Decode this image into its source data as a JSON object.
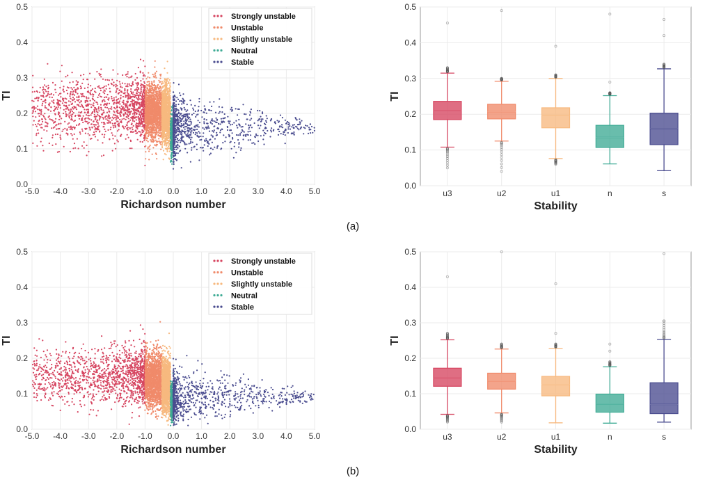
{
  "colors": {
    "strongly_unstable": "#d64560",
    "unstable": "#f08a6a",
    "slightly_unstable": "#f7b97f",
    "neutral": "#3fab95",
    "stable": "#4a4c8f"
  },
  "chart_data": [
    {
      "id": "a-scatter",
      "type": "scatter",
      "panel": "a",
      "xlabel": "Richardson number",
      "ylabel": "TI",
      "xlim": [
        -5.0,
        5.0
      ],
      "ylim": [
        0.0,
        0.5
      ],
      "xticks": [
        "-5.0",
        "-4.0",
        "-3.0",
        "-2.0",
        "-1.0",
        "0.0",
        "1.0",
        "2.0",
        "3.0",
        "4.0",
        "5.0"
      ],
      "yticks": [
        "0.0",
        "0.1",
        "0.2",
        "0.3",
        "0.4",
        "0.5"
      ],
      "legend_position": "top-right",
      "series": [
        {
          "name": "Strongly unstable",
          "x_range": [
            -5.0,
            -1.0
          ],
          "y_center": 0.21,
          "y_spread": 0.045
        },
        {
          "name": "Unstable",
          "x_range": [
            -1.0,
            -0.4
          ],
          "y_center": 0.205,
          "y_spread": 0.04
        },
        {
          "name": "Slightly unstable",
          "x_range": [
            -0.4,
            -0.1
          ],
          "y_center": 0.195,
          "y_spread": 0.04
        },
        {
          "name": "Neutral",
          "x_range": [
            -0.1,
            0.0
          ],
          "y_center": 0.14,
          "y_spread": 0.03
        },
        {
          "name": "Stable",
          "x_range": [
            0.0,
            5.0
          ],
          "y_center": 0.16,
          "y_spread": 0.045
        }
      ]
    },
    {
      "id": "a-box",
      "type": "box",
      "panel": "a",
      "xlabel": "Stability",
      "ylabel": "TI",
      "ylim": [
        0.0,
        0.5
      ],
      "yticks": [
        "0.0",
        "0.1",
        "0.2",
        "0.3",
        "0.4",
        "0.5"
      ],
      "categories": [
        "u3",
        "u2",
        "u1",
        "n",
        "s"
      ],
      "boxes": [
        {
          "category": "u3",
          "whisker_low": 0.108,
          "q1": 0.185,
          "median": 0.21,
          "q3": 0.236,
          "whisker_high": 0.315,
          "outliers_low": [
            0.05,
            0.09
          ],
          "outliers_high": [
            0.33,
            0.455
          ]
        },
        {
          "category": "u2",
          "whisker_low": 0.125,
          "q1": 0.187,
          "median": 0.207,
          "q3": 0.228,
          "whisker_high": 0.292,
          "outliers_low": [
            0.04,
            0.115
          ],
          "outliers_high": [
            0.3,
            0.49
          ]
        },
        {
          "category": "u1",
          "whisker_low": 0.076,
          "q1": 0.162,
          "median": 0.196,
          "q3": 0.218,
          "whisker_high": 0.3,
          "outliers_low": [
            0.06,
            0.07
          ],
          "outliers_high": [
            0.31,
            0.39
          ]
        },
        {
          "category": "n",
          "whisker_low": 0.061,
          "q1": 0.107,
          "median": 0.135,
          "q3": 0.169,
          "whisker_high": 0.252,
          "outliers_low": [],
          "outliers_high": [
            0.26,
            0.29,
            0.48
          ]
        },
        {
          "category": "s",
          "whisker_low": 0.042,
          "q1": 0.115,
          "median": 0.16,
          "q3": 0.203,
          "whisker_high": 0.327,
          "outliers_low": [],
          "outliers_high": [
            0.34,
            0.42,
            0.465
          ]
        }
      ]
    },
    {
      "id": "b-scatter",
      "type": "scatter",
      "panel": "b",
      "xlabel": "Richardson number",
      "ylabel": "TI",
      "xlim": [
        -5.0,
        5.0
      ],
      "ylim": [
        0.0,
        0.5
      ],
      "xticks": [
        "-5.0",
        "-4.0",
        "-3.0",
        "-2.0",
        "-1.0",
        "0.0",
        "1.0",
        "2.0",
        "3.0",
        "4.0",
        "5.0"
      ],
      "yticks": [
        "0.0",
        "0.1",
        "0.2",
        "0.3",
        "0.4",
        "0.5"
      ],
      "legend_position": "top-right",
      "series": [
        {
          "name": "Strongly unstable",
          "x_range": [
            -5.0,
            -1.0
          ],
          "y_center": 0.15,
          "y_spread": 0.04
        },
        {
          "name": "Unstable",
          "x_range": [
            -1.0,
            -0.4
          ],
          "y_center": 0.14,
          "y_spread": 0.038
        },
        {
          "name": "Slightly unstable",
          "x_range": [
            -0.4,
            -0.1
          ],
          "y_center": 0.125,
          "y_spread": 0.038
        },
        {
          "name": "Neutral",
          "x_range": [
            -0.1,
            0.0
          ],
          "y_center": 0.075,
          "y_spread": 0.025
        },
        {
          "name": "Stable",
          "x_range": [
            0.0,
            5.0
          ],
          "y_center": 0.09,
          "y_spread": 0.04
        }
      ]
    },
    {
      "id": "b-box",
      "type": "box",
      "panel": "b",
      "xlabel": "Stability",
      "ylabel": "TI",
      "ylim": [
        0.0,
        0.5
      ],
      "yticks": [
        "0.0",
        "0.1",
        "0.2",
        "0.3",
        "0.4",
        "0.5"
      ],
      "categories": [
        "u3",
        "u2",
        "u1",
        "n",
        "s"
      ],
      "boxes": [
        {
          "category": "u3",
          "whisker_low": 0.042,
          "q1": 0.121,
          "median": 0.144,
          "q3": 0.172,
          "whisker_high": 0.252,
          "outliers_low": [
            0.02,
            0.03
          ],
          "outliers_high": [
            0.27,
            0.43
          ]
        },
        {
          "category": "u2",
          "whisker_low": 0.046,
          "q1": 0.113,
          "median": 0.136,
          "q3": 0.158,
          "whisker_high": 0.226,
          "outliers_low": [
            0.02,
            0.035
          ],
          "outliers_high": [
            0.24,
            0.5
          ]
        },
        {
          "category": "u1",
          "whisker_low": 0.018,
          "q1": 0.094,
          "median": 0.126,
          "q3": 0.149,
          "whisker_high": 0.228,
          "outliers_low": [],
          "outliers_high": [
            0.24,
            0.27,
            0.41
          ]
        },
        {
          "category": "n",
          "whisker_low": 0.017,
          "q1": 0.048,
          "median": 0.071,
          "q3": 0.099,
          "whisker_high": 0.176,
          "outliers_low": [],
          "outliers_high": [
            0.19,
            0.22,
            0.24
          ]
        },
        {
          "category": "s",
          "whisker_low": 0.02,
          "q1": 0.044,
          "median": 0.07,
          "q3": 0.131,
          "whisker_high": 0.253,
          "outliers_low": [],
          "outliers_high": [
            0.305,
            0.495
          ]
        }
      ]
    }
  ],
  "captions": {
    "a": "(a)",
    "b": "(b)"
  }
}
